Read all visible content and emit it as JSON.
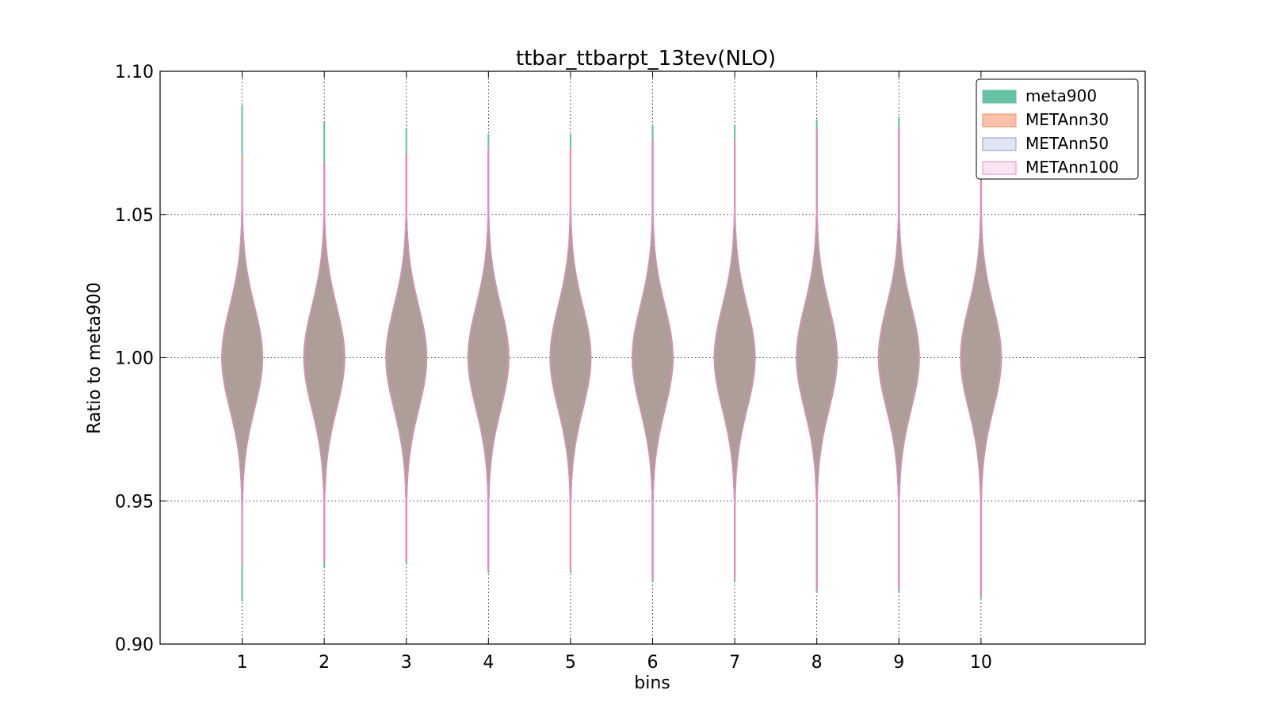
{
  "chart_data": {
    "type": "violin",
    "title": "ttbar_ttbarpt_13tev(NLO)",
    "xlabel": "bins",
    "ylabel": "Ratio to meta900",
    "ylim": [
      0.9,
      1.1
    ],
    "xlim": [
      0,
      12
    ],
    "yticks": [
      "0.90",
      "0.95",
      "1.00",
      "1.05",
      "1.10"
    ],
    "categories": [
      "1",
      "2",
      "3",
      "4",
      "5",
      "6",
      "7",
      "8",
      "9",
      "10"
    ],
    "grid": true,
    "legend_position": "top-right",
    "series": [
      {
        "name": "meta900",
        "fill": "#66c2a5",
        "stroke": "#66c2a5",
        "min": [
          0.915,
          0.927,
          0.928,
          0.925,
          0.925,
          0.922,
          0.922,
          0.918,
          0.918,
          0.916
        ],
        "max": [
          1.088,
          1.082,
          1.08,
          1.078,
          1.078,
          1.081,
          1.081,
          1.083,
          1.084,
          1.086
        ]
      },
      {
        "name": "METAnn30",
        "fill": "#fc8d62",
        "stroke": "#fc8d62",
        "min": [
          0.928,
          0.929,
          0.929,
          0.926,
          0.926,
          0.923,
          0.923,
          0.919,
          0.919,
          0.917
        ],
        "max": [
          1.07,
          1.068,
          1.071,
          1.073,
          1.073,
          1.076,
          1.076,
          1.08,
          1.08,
          1.082
        ]
      },
      {
        "name": "METAnn50",
        "fill": "#8da0cb",
        "stroke": "#8da0cb",
        "min": [
          0.929,
          0.929,
          0.929,
          0.926,
          0.926,
          0.923,
          0.923,
          0.919,
          0.919,
          0.917
        ],
        "max": [
          1.069,
          1.068,
          1.071,
          1.073,
          1.073,
          1.076,
          1.076,
          1.08,
          1.08,
          1.082
        ]
      },
      {
        "name": "METAnn100",
        "fill": "#e78ac3",
        "stroke": "#e78ac3",
        "min": [
          0.929,
          0.929,
          0.929,
          0.926,
          0.926,
          0.923,
          0.923,
          0.919,
          0.919,
          0.917
        ],
        "max": [
          1.069,
          1.068,
          1.071,
          1.073,
          1.073,
          1.076,
          1.076,
          1.08,
          1.08,
          1.082
        ]
      }
    ],
    "body_color": "#ae9f98"
  }
}
